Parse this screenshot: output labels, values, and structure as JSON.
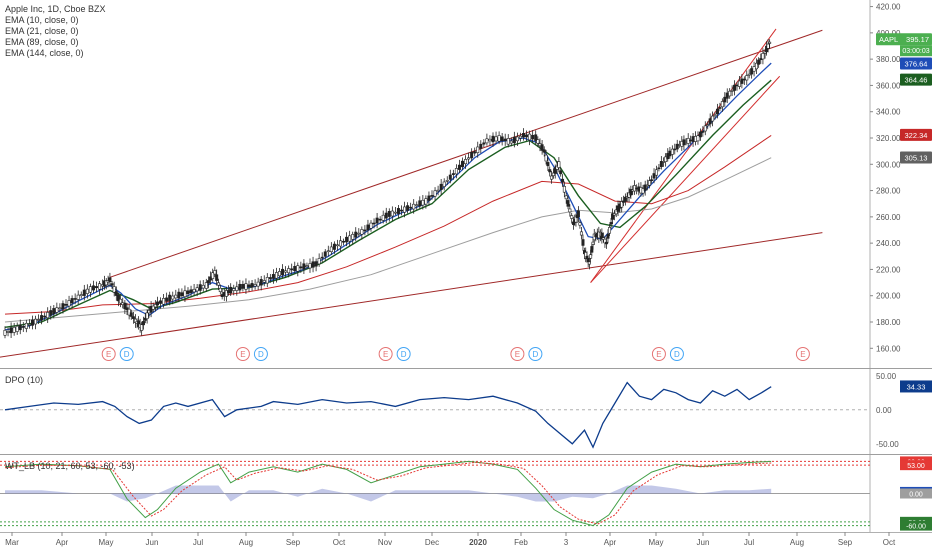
{
  "chart_data": {
    "type": "line",
    "symbol": "AAPL",
    "legend": [
      "Apple Inc, 1D, Cboe BZX",
      "EMA (10, close, 0)",
      "EMA (21, close, 0)",
      "EMA (89, close, 0)",
      "EMA (144, close, 0)"
    ],
    "x_ticks": [
      "Mar",
      "Apr",
      "May",
      "Jun",
      "Jul",
      "Aug",
      "Sep",
      "Oct",
      "Nov",
      "Dec",
      "2020",
      "Feb",
      "3",
      "Apr",
      "May",
      "Jun",
      "Jul",
      "Aug",
      "Sep",
      "Oct"
    ],
    "y_ticks_price": [
      "420.00",
      "400.00",
      "380.00",
      "360.00",
      "340.00",
      "320.00",
      "300.00",
      "280.00",
      "260.00",
      "240.00",
      "220.00",
      "200.00",
      "180.00",
      "160.00"
    ],
    "ylim_price": [
      145,
      425
    ],
    "price_badges": [
      {
        "label": "AAPL",
        "value": "395.17",
        "time": "03:00:03",
        "color": "#4caf50"
      },
      {
        "label": "",
        "value": "376.64",
        "color": "#1e4db7"
      },
      {
        "label": "",
        "value": "364.46",
        "color": "#1b5e20"
      },
      {
        "label": "",
        "value": "322.34",
        "color": "#c62828"
      },
      {
        "label": "",
        "value": "305.13",
        "color": "#616161"
      }
    ],
    "price_close": [
      {
        "t": 0,
        "v": 172
      },
      {
        "t": 1,
        "v": 175
      },
      {
        "t": 2,
        "v": 178
      },
      {
        "t": 3,
        "v": 183
      },
      {
        "t": 4,
        "v": 188
      },
      {
        "t": 5,
        "v": 193
      },
      {
        "t": 6,
        "v": 199
      },
      {
        "t": 7,
        "v": 205
      },
      {
        "t": 8,
        "v": 208
      },
      {
        "t": 8.6,
        "v": 212
      },
      {
        "t": 9.3,
        "v": 198
      },
      {
        "t": 10,
        "v": 190
      },
      {
        "t": 10.7,
        "v": 181
      },
      {
        "t": 11.2,
        "v": 176
      },
      {
        "t": 11.8,
        "v": 188
      },
      {
        "t": 12.5,
        "v": 194
      },
      {
        "t": 13.5,
        "v": 198
      },
      {
        "t": 14.5,
        "v": 201
      },
      {
        "t": 15.5,
        "v": 204
      },
      {
        "t": 16.5,
        "v": 208
      },
      {
        "t": 17.2,
        "v": 218
      },
      {
        "t": 17.8,
        "v": 200
      },
      {
        "t": 18.5,
        "v": 204
      },
      {
        "t": 19.5,
        "v": 207
      },
      {
        "t": 20.5,
        "v": 208
      },
      {
        "t": 21.5,
        "v": 212
      },
      {
        "t": 22.5,
        "v": 217
      },
      {
        "t": 23.5,
        "v": 220
      },
      {
        "t": 24.5,
        "v": 222
      },
      {
        "t": 25.5,
        "v": 224
      },
      {
        "t": 26.5,
        "v": 234
      },
      {
        "t": 27.5,
        "v": 240
      },
      {
        "t": 28.5,
        "v": 245
      },
      {
        "t": 29.5,
        "v": 250
      },
      {
        "t": 30.5,
        "v": 257
      },
      {
        "t": 31.5,
        "v": 262
      },
      {
        "t": 32.5,
        "v": 265
      },
      {
        "t": 33.5,
        "v": 268
      },
      {
        "t": 34.5,
        "v": 272
      },
      {
        "t": 35.5,
        "v": 280
      },
      {
        "t": 36.5,
        "v": 290
      },
      {
        "t": 37.5,
        "v": 300
      },
      {
        "t": 38.5,
        "v": 309
      },
      {
        "t": 39.5,
        "v": 318
      },
      {
        "t": 40.5,
        "v": 320
      },
      {
        "t": 41.5,
        "v": 317
      },
      {
        "t": 42.5,
        "v": 322
      },
      {
        "t": 43.5,
        "v": 320
      },
      {
        "t": 44.2,
        "v": 310
      },
      {
        "t": 44.8,
        "v": 290
      },
      {
        "t": 45.4,
        "v": 300
      },
      {
        "t": 46,
        "v": 275
      },
      {
        "t": 46.6,
        "v": 255
      },
      {
        "t": 47,
        "v": 262
      },
      {
        "t": 47.5,
        "v": 233
      },
      {
        "t": 47.9,
        "v": 225
      },
      {
        "t": 48.3,
        "v": 245
      },
      {
        "t": 48.8,
        "v": 247
      },
      {
        "t": 49.3,
        "v": 240
      },
      {
        "t": 49.8,
        "v": 260
      },
      {
        "t": 50.4,
        "v": 268
      },
      {
        "t": 51,
        "v": 275
      },
      {
        "t": 51.6,
        "v": 282
      },
      {
        "t": 52.3,
        "v": 280
      },
      {
        "t": 53,
        "v": 288
      },
      {
        "t": 53.8,
        "v": 300
      },
      {
        "t": 54.5,
        "v": 308
      },
      {
        "t": 55.3,
        "v": 315
      },
      {
        "t": 56,
        "v": 318
      },
      {
        "t": 56.8,
        "v": 320
      },
      {
        "t": 57.6,
        "v": 330
      },
      {
        "t": 58.4,
        "v": 340
      },
      {
        "t": 59.2,
        "v": 352
      },
      {
        "t": 60,
        "v": 360
      },
      {
        "t": 60.8,
        "v": 366
      },
      {
        "t": 61.6,
        "v": 375
      },
      {
        "t": 62.3,
        "v": 385
      },
      {
        "t": 62.8,
        "v": 395
      }
    ],
    "ema10": [
      {
        "t": 0,
        "v": 174
      },
      {
        "t": 2,
        "v": 177
      },
      {
        "t": 4,
        "v": 186
      },
      {
        "t": 6,
        "v": 196
      },
      {
        "t": 8.6,
        "v": 208
      },
      {
        "t": 9.5,
        "v": 202
      },
      {
        "t": 10.7,
        "v": 190
      },
      {
        "t": 11.8,
        "v": 185
      },
      {
        "t": 13,
        "v": 193
      },
      {
        "t": 15,
        "v": 200
      },
      {
        "t": 17,
        "v": 210
      },
      {
        "t": 18.5,
        "v": 205
      },
      {
        "t": 20.5,
        "v": 207
      },
      {
        "t": 22.5,
        "v": 214
      },
      {
        "t": 24.5,
        "v": 220
      },
      {
        "t": 26.5,
        "v": 230
      },
      {
        "t": 28.5,
        "v": 242
      },
      {
        "t": 30.5,
        "v": 254
      },
      {
        "t": 32.5,
        "v": 263
      },
      {
        "t": 34.5,
        "v": 270
      },
      {
        "t": 36.5,
        "v": 287
      },
      {
        "t": 38.5,
        "v": 305
      },
      {
        "t": 40.5,
        "v": 317
      },
      {
        "t": 42.5,
        "v": 320
      },
      {
        "t": 43.8,
        "v": 316
      },
      {
        "t": 45,
        "v": 298
      },
      {
        "t": 46.5,
        "v": 270
      },
      {
        "t": 47.8,
        "v": 245
      },
      {
        "t": 49,
        "v": 243
      },
      {
        "t": 50.4,
        "v": 258
      },
      {
        "t": 52,
        "v": 275
      },
      {
        "t": 54,
        "v": 295
      },
      {
        "t": 56,
        "v": 313
      },
      {
        "t": 58,
        "v": 333
      },
      {
        "t": 60,
        "v": 352
      },
      {
        "t": 62,
        "v": 370
      },
      {
        "t": 62.8,
        "v": 377
      }
    ],
    "ema21": [
      {
        "t": 0,
        "v": 176
      },
      {
        "t": 3,
        "v": 180
      },
      {
        "t": 6,
        "v": 193
      },
      {
        "t": 8.6,
        "v": 204
      },
      {
        "t": 10.5,
        "v": 197
      },
      {
        "t": 12,
        "v": 190
      },
      {
        "t": 14,
        "v": 195
      },
      {
        "t": 17,
        "v": 205
      },
      {
        "t": 20,
        "v": 206
      },
      {
        "t": 23,
        "v": 214
      },
      {
        "t": 26,
        "v": 225
      },
      {
        "t": 29,
        "v": 242
      },
      {
        "t": 32,
        "v": 258
      },
      {
        "t": 35,
        "v": 270
      },
      {
        "t": 38,
        "v": 296
      },
      {
        "t": 41,
        "v": 313
      },
      {
        "t": 43,
        "v": 318
      },
      {
        "t": 45,
        "v": 305
      },
      {
        "t": 47,
        "v": 276
      },
      {
        "t": 48.8,
        "v": 255
      },
      {
        "t": 50.4,
        "v": 252
      },
      {
        "t": 52.5,
        "v": 268
      },
      {
        "t": 55,
        "v": 292
      },
      {
        "t": 58,
        "v": 322
      },
      {
        "t": 60.5,
        "v": 345
      },
      {
        "t": 62.8,
        "v": 364
      }
    ],
    "ema89": [
      {
        "t": 0,
        "v": 186
      },
      {
        "t": 4,
        "v": 188
      },
      {
        "t": 8,
        "v": 193
      },
      {
        "t": 12,
        "v": 194
      },
      {
        "t": 16,
        "v": 198
      },
      {
        "t": 20,
        "v": 203
      },
      {
        "t": 24,
        "v": 210
      },
      {
        "t": 28,
        "v": 222
      },
      {
        "t": 32,
        "v": 237
      },
      {
        "t": 36,
        "v": 253
      },
      {
        "t": 40,
        "v": 272
      },
      {
        "t": 44,
        "v": 287
      },
      {
        "t": 47,
        "v": 285
      },
      {
        "t": 50,
        "v": 272
      },
      {
        "t": 53,
        "v": 270
      },
      {
        "t": 56,
        "v": 280
      },
      {
        "t": 59,
        "v": 298
      },
      {
        "t": 62.8,
        "v": 322
      }
    ],
    "ema144": [
      {
        "t": 0,
        "v": 180
      },
      {
        "t": 5,
        "v": 184
      },
      {
        "t": 10,
        "v": 188
      },
      {
        "t": 15,
        "v": 192
      },
      {
        "t": 20,
        "v": 197
      },
      {
        "t": 25,
        "v": 205
      },
      {
        "t": 30,
        "v": 216
      },
      {
        "t": 35,
        "v": 232
      },
      {
        "t": 40,
        "v": 248
      },
      {
        "t": 44,
        "v": 260
      },
      {
        "t": 47,
        "v": 265
      },
      {
        "t": 50,
        "v": 263
      },
      {
        "t": 53,
        "v": 266
      },
      {
        "t": 56,
        "v": 275
      },
      {
        "t": 59,
        "v": 288
      },
      {
        "t": 62.8,
        "v": 305
      }
    ],
    "trendlines": [
      {
        "t1": 8.6,
        "v1": 214,
        "t2": 67,
        "v2": 402,
        "color": "#a02828"
      },
      {
        "t1": -2,
        "v1": 151,
        "t2": 67,
        "v2": 248,
        "color": "#a02828"
      },
      {
        "t1": 48,
        "v1": 210,
        "t2": 63.2,
        "v2": 403,
        "color": "#d32f2f"
      },
      {
        "t1": 48,
        "v1": 210,
        "t2": 63.5,
        "v2": 367,
        "color": "#d32f2f"
      }
    ],
    "earnings_markers": [
      {
        "t": 8.5,
        "labels": [
          "E",
          "D"
        ]
      },
      {
        "t": 19.5,
        "labels": [
          "E",
          "D"
        ]
      },
      {
        "t": 31.2,
        "labels": [
          "E",
          "D"
        ]
      },
      {
        "t": 42,
        "labels": [
          "E",
          "D"
        ]
      },
      {
        "t": 53.6,
        "labels": [
          "E",
          "D"
        ]
      },
      {
        "t": 65.4,
        "labels": [
          "E"
        ]
      }
    ],
    "dpo": {
      "title": "DPO (10)",
      "ylim": [
        -65,
        60
      ],
      "y_ticks": [
        "50.00",
        "0.00",
        "-50.00"
      ],
      "badge": "34.33",
      "values": [
        {
          "t": 0,
          "v": 0
        },
        {
          "t": 2,
          "v": 5
        },
        {
          "t": 4,
          "v": 10
        },
        {
          "t": 6,
          "v": 8
        },
        {
          "t": 8,
          "v": 12
        },
        {
          "t": 9,
          "v": 5
        },
        {
          "t": 10,
          "v": -10
        },
        {
          "t": 11,
          "v": -20
        },
        {
          "t": 12,
          "v": -15
        },
        {
          "t": 13,
          "v": 5
        },
        {
          "t": 14,
          "v": 10
        },
        {
          "t": 15,
          "v": 5
        },
        {
          "t": 17,
          "v": 15
        },
        {
          "t": 18,
          "v": -10
        },
        {
          "t": 19,
          "v": 0
        },
        {
          "t": 21,
          "v": 5
        },
        {
          "t": 22,
          "v": 12
        },
        {
          "t": 24,
          "v": 8
        },
        {
          "t": 26,
          "v": 15
        },
        {
          "t": 28,
          "v": 10
        },
        {
          "t": 30,
          "v": 12
        },
        {
          "t": 32,
          "v": 5
        },
        {
          "t": 34,
          "v": 15
        },
        {
          "t": 36,
          "v": 18
        },
        {
          "t": 38,
          "v": 15
        },
        {
          "t": 40,
          "v": 20
        },
        {
          "t": 42,
          "v": 10
        },
        {
          "t": 43.5,
          "v": -2
        },
        {
          "t": 44.5,
          "v": -20
        },
        {
          "t": 45.5,
          "v": -35
        },
        {
          "t": 46.5,
          "v": -50
        },
        {
          "t": 47.5,
          "v": -30
        },
        {
          "t": 48.2,
          "v": -55
        },
        {
          "t": 49,
          "v": -20
        },
        {
          "t": 50,
          "v": 10
        },
        {
          "t": 51,
          "v": 40
        },
        {
          "t": 52,
          "v": 20
        },
        {
          "t": 53,
          "v": 15
        },
        {
          "t": 54,
          "v": 30
        },
        {
          "t": 55,
          "v": 25
        },
        {
          "t": 56,
          "v": 15
        },
        {
          "t": 57,
          "v": 10
        },
        {
          "t": 58,
          "v": 28
        },
        {
          "t": 59,
          "v": 20
        },
        {
          "t": 60,
          "v": 30
        },
        {
          "t": 61,
          "v": 15
        },
        {
          "t": 62,
          "v": 25
        },
        {
          "t": 62.8,
          "v": 34
        }
      ]
    },
    "wt_lb": {
      "title": "WT_LB (10, 21, 60, 53, -60, -53)",
      "ylim": [
        -72,
        72
      ],
      "y_ticks": [
        "60.00",
        "53.00",
        "2.95",
        "0.00",
        "-53.00",
        "-60.00"
      ],
      "levels": {
        "upper": [
          60,
          53
        ],
        "lower": [
          -53,
          -60
        ]
      },
      "wt1": [
        {
          "t": 0,
          "v": 50
        },
        {
          "t": 3,
          "v": 55
        },
        {
          "t": 6,
          "v": 52
        },
        {
          "t": 8.6,
          "v": 45
        },
        {
          "t": 10,
          "v": -10
        },
        {
          "t": 11.5,
          "v": -45
        },
        {
          "t": 12.5,
          "v": -30
        },
        {
          "t": 14,
          "v": 10
        },
        {
          "t": 16,
          "v": 40
        },
        {
          "t": 17.5,
          "v": 55
        },
        {
          "t": 18.5,
          "v": 20
        },
        {
          "t": 20,
          "v": 40
        },
        {
          "t": 22,
          "v": 50
        },
        {
          "t": 24,
          "v": 40
        },
        {
          "t": 26,
          "v": 55
        },
        {
          "t": 28,
          "v": 45
        },
        {
          "t": 30,
          "v": 20
        },
        {
          "t": 32,
          "v": 35
        },
        {
          "t": 34,
          "v": 50
        },
        {
          "t": 36,
          "v": 55
        },
        {
          "t": 38,
          "v": 60
        },
        {
          "t": 40,
          "v": 55
        },
        {
          "t": 42,
          "v": 45
        },
        {
          "t": 43.5,
          "v": 10
        },
        {
          "t": 45,
          "v": -30
        },
        {
          "t": 46.5,
          "v": -50
        },
        {
          "t": 48.2,
          "v": -60
        },
        {
          "t": 49.5,
          "v": -40
        },
        {
          "t": 51,
          "v": 10
        },
        {
          "t": 53,
          "v": 40
        },
        {
          "t": 55,
          "v": 55
        },
        {
          "t": 57,
          "v": 50
        },
        {
          "t": 59,
          "v": 55
        },
        {
          "t": 61,
          "v": 58
        },
        {
          "t": 62.8,
          "v": 60
        }
      ],
      "wt2": [
        {
          "t": 0,
          "v": 48
        },
        {
          "t": 3,
          "v": 53
        },
        {
          "t": 6,
          "v": 52
        },
        {
          "t": 8.8,
          "v": 45
        },
        {
          "t": 10.5,
          "v": -5
        },
        {
          "t": 12,
          "v": -42
        },
        {
          "t": 13,
          "v": -30
        },
        {
          "t": 14.5,
          "v": 5
        },
        {
          "t": 16.5,
          "v": 35
        },
        {
          "t": 18,
          "v": 50
        },
        {
          "t": 19,
          "v": 25
        },
        {
          "t": 20.5,
          "v": 38
        },
        {
          "t": 22.5,
          "v": 48
        },
        {
          "t": 24.5,
          "v": 42
        },
        {
          "t": 26.5,
          "v": 52
        },
        {
          "t": 28.5,
          "v": 45
        },
        {
          "t": 30.5,
          "v": 25
        },
        {
          "t": 32.5,
          "v": 33
        },
        {
          "t": 34.5,
          "v": 48
        },
        {
          "t": 36.5,
          "v": 53
        },
        {
          "t": 38.5,
          "v": 58
        },
        {
          "t": 40.5,
          "v": 55
        },
        {
          "t": 42.5,
          "v": 47
        },
        {
          "t": 44,
          "v": 15
        },
        {
          "t": 45.5,
          "v": -25
        },
        {
          "t": 47,
          "v": -48
        },
        {
          "t": 48.6,
          "v": -57
        },
        {
          "t": 50,
          "v": -40
        },
        {
          "t": 51.5,
          "v": 5
        },
        {
          "t": 53.5,
          "v": 35
        },
        {
          "t": 55.5,
          "v": 52
        },
        {
          "t": 57.5,
          "v": 50
        },
        {
          "t": 59.5,
          "v": 53
        },
        {
          "t": 61.5,
          "v": 56
        },
        {
          "t": 62.8,
          "v": 57
        }
      ]
    }
  }
}
